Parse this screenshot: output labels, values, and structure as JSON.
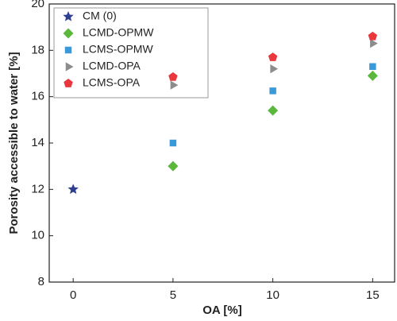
{
  "chart_data": {
    "type": "scatter",
    "x_label": "OA [%]",
    "y_label": "Porosity accessible to water [%]",
    "xlim": [
      -1.2,
      16.1
    ],
    "ylim": [
      8,
      20
    ],
    "xticks": [
      0,
      5,
      10,
      15
    ],
    "yticks": [
      8,
      10,
      12,
      14,
      16,
      18,
      20
    ],
    "legend": "upper left",
    "series": [
      {
        "name": "CM (0)",
        "color": "#2e3f8f",
        "marker": "star",
        "x": [
          0
        ],
        "values": [
          12
        ]
      },
      {
        "name": "LCMD-OPMW",
        "color": "#5cb83c",
        "marker": "diamond",
        "x": [
          5,
          10,
          15
        ],
        "values": [
          13,
          15.4,
          16.9
        ]
      },
      {
        "name": "LCMS-OPMW",
        "color": "#3a9ad9",
        "marker": "square",
        "x": [
          5,
          10,
          15
        ],
        "values": [
          14,
          16.25,
          17.3
        ]
      },
      {
        "name": "LCMD-OPA",
        "color": "#8c8c8c",
        "marker": "triangle-right",
        "x": [
          5,
          10,
          15
        ],
        "values": [
          16.5,
          17.2,
          18.3
        ]
      },
      {
        "name": "LCMS-OPA",
        "color": "#e8383d",
        "marker": "pentagon",
        "x": [
          5,
          10,
          15
        ],
        "values": [
          16.85,
          17.7,
          18.6
        ]
      }
    ]
  }
}
